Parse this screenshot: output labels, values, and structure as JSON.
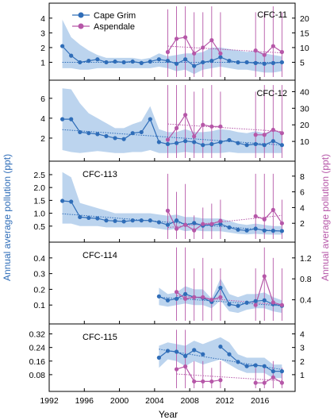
{
  "colors": {
    "cape_grim": "#2f6db8",
    "aspendale": "#b657a8",
    "band": "#bcd4ee",
    "frame": "#000000"
  },
  "labels": {
    "xlabel": "Year",
    "ylabel_left": "Annual average pollution (ppt)",
    "ylabel_right": "Annual average pollution (ppt)"
  },
  "x_axis": {
    "range": [
      1992,
      2020
    ],
    "ticks": [
      "1992",
      "1996",
      "2000",
      "2004",
      "2008",
      "2012",
      "2016"
    ]
  },
  "legend": {
    "placement": "top-left-center",
    "entries": [
      "Cape Grim",
      "Aspendale"
    ]
  },
  "chart_data": [
    {
      "type": "line",
      "title": "CFC-11",
      "title_position": "right",
      "left_axis": {
        "range": [
          0,
          4.8
        ],
        "ticks": [
          "1",
          "2",
          "3",
          "4"
        ]
      },
      "right_axis": {
        "range": [
          0,
          24
        ],
        "ticks": [
          "5",
          "10",
          "15",
          "20"
        ]
      },
      "cape_grim": {
        "x": [
          1993.5,
          1994.5,
          1995.5,
          1996.5,
          1997.5,
          1998.5,
          1999.5,
          2000.5,
          2001.5,
          2002.5,
          2003.5,
          2004.5,
          2005.5,
          2006.5,
          2007.5,
          2008.5,
          2009.5,
          2010.5,
          2011.5,
          2012.5,
          2013.5,
          2014.5,
          2015.5,
          2016.5,
          2017.5,
          2018.5
        ],
        "y": [
          2.1,
          1.45,
          1.0,
          1.1,
          1.2,
          1.0,
          1.05,
          1.0,
          1.05,
          0.95,
          1.05,
          1.2,
          1.1,
          0.9,
          1.2,
          0.75,
          1.0,
          1.1,
          1.35,
          1.1,
          1.0,
          1.0,
          0.95,
          0.9,
          0.95,
          1.0
        ],
        "band_upper": [
          3.9,
          2.7,
          2.2,
          1.8,
          1.5,
          1.3,
          1.3,
          1.3,
          1.3,
          1.2,
          1.3,
          1.6,
          1.4,
          1.5,
          1.6,
          1.6,
          1.7,
          2.0,
          2.0,
          1.9,
          1.8,
          1.7,
          1.8,
          1.6,
          1.5,
          1.4
        ],
        "band_lower": [
          0.6,
          0.6,
          0.5,
          0.5,
          0.6,
          0.6,
          0.6,
          0.6,
          0.6,
          0.6,
          0.6,
          0.7,
          0.6,
          0.4,
          0.5,
          0.2,
          0.5,
          0.6,
          0.7,
          0.6,
          0.5,
          0.5,
          0.4,
          0.3,
          0.3,
          0.4
        ],
        "trend": [
          [
            1993.5,
            1.0
          ],
          [
            2018.5,
            1.0
          ]
        ]
      },
      "aspendale": {
        "x": [
          2005.5,
          2006.5,
          2007.5,
          2008.5,
          2009.5,
          2010.5,
          2011.5,
          2015.5,
          2016.5,
          2017.5,
          2018.5
        ],
        "y": [
          8.5,
          13.0,
          13.5,
          8.0,
          10.0,
          12.5,
          8.0,
          9.0,
          7.5,
          10.5,
          8.5
        ],
        "err_low": [
          0.0,
          0.0,
          0.0,
          0.0,
          0.0,
          0.0,
          0.0,
          0.0,
          0.0,
          0.0,
          0.0
        ],
        "err_high": [
          23.0,
          24.0,
          24.0,
          22.0,
          22.0,
          24.0,
          22.0,
          22.0,
          22.0,
          24.0,
          22.0
        ],
        "trend": [
          [
            2005.5,
            10.5
          ],
          [
            2018.5,
            8.2
          ]
        ]
      }
    },
    {
      "type": "line",
      "title": "CFC-12",
      "title_position": "right",
      "left_axis": {
        "range": [
          0,
          7.5
        ],
        "ticks": [
          "2",
          "4",
          "6"
        ]
      },
      "right_axis": {
        "range": [
          0,
          45
        ],
        "ticks": [
          "10",
          "20",
          "30",
          "40"
        ]
      },
      "cape_grim": {
        "x": [
          1993.5,
          1994.5,
          1995.5,
          1996.5,
          1997.5,
          1998.5,
          1999.5,
          2000.5,
          2001.5,
          2002.5,
          2003.5,
          2004.5,
          2005.5,
          2006.5,
          2007.5,
          2008.5,
          2009.5,
          2010.5,
          2011.5,
          2012.5,
          2013.5,
          2014.5,
          2015.5,
          2016.5,
          2017.5,
          2018.5
        ],
        "y": [
          3.9,
          3.9,
          2.6,
          2.5,
          2.4,
          2.2,
          2.0,
          1.9,
          2.5,
          2.6,
          3.9,
          1.6,
          1.4,
          1.5,
          1.7,
          1.6,
          1.3,
          1.4,
          1.6,
          1.8,
          1.5,
          1.3,
          1.4,
          1.3,
          1.7,
          1.3
        ],
        "band_upper": [
          7.0,
          6.9,
          5.5,
          4.5,
          4.0,
          3.5,
          3.0,
          3.0,
          3.4,
          3.7,
          5.2,
          2.9,
          2.6,
          2.6,
          2.9,
          2.6,
          2.6,
          2.7,
          2.9,
          2.8,
          2.6,
          2.5,
          2.7,
          2.5,
          2.8,
          2.5
        ],
        "band_lower": [
          0.8,
          0.6,
          0.5,
          0.6,
          0.7,
          0.6,
          0.5,
          0.5,
          0.6,
          0.6,
          0.8,
          0.5,
          0.5,
          0.5,
          0.6,
          0.5,
          0.5,
          0.5,
          0.5,
          0.6,
          0.5,
          0.5,
          0.5,
          0.5,
          0.5,
          0.5
        ],
        "trend": [
          [
            1993.5,
            2.85
          ],
          [
            2018.5,
            1.3
          ]
        ]
      },
      "aspendale": {
        "x": [
          2005.5,
          2006.5,
          2007.5,
          2008.5,
          2009.5,
          2010.5,
          2011.5,
          2015.5,
          2016.5,
          2017.5,
          2018.5
        ],
        "y": [
          11.0,
          18.0,
          26.0,
          13.0,
          20.0,
          19.0,
          19.0,
          14.0,
          14.0,
          17.0,
          15.0
        ],
        "err_low": [
          0.0,
          0.0,
          0.0,
          0.0,
          0.0,
          0.0,
          0.0,
          0.0,
          0.0,
          0.0,
          0.0
        ],
        "err_high": [
          44.0,
          44.0,
          44.0,
          40.0,
          42.0,
          44.0,
          40.0,
          40.0,
          44.0,
          44.0,
          44.0
        ],
        "trend": [
          [
            2005.5,
            20.5
          ],
          [
            2018.5,
            16.0
          ]
        ]
      }
    },
    {
      "type": "line",
      "title": "CFC-113",
      "title_position": "left",
      "left_axis": {
        "range": [
          0,
          2.9
        ],
        "ticks": [
          "0.5",
          "1.0",
          "1.5",
          "2.0",
          "2.5"
        ]
      },
      "right_axis": {
        "range": [
          0,
          9.5
        ],
        "ticks": [
          "2",
          "4",
          "6",
          "8"
        ]
      },
      "cape_grim": {
        "x": [
          1993.5,
          1994.5,
          1995.5,
          1996.5,
          1997.5,
          1998.5,
          1999.5,
          2000.5,
          2001.5,
          2002.5,
          2003.5,
          2004.5,
          2005.5,
          2006.5,
          2007.5,
          2008.5,
          2009.5,
          2010.5,
          2011.5,
          2012.5,
          2013.5,
          2014.5,
          2015.5,
          2016.5,
          2017.5,
          2018.5
        ],
        "y": [
          1.48,
          1.45,
          0.85,
          0.82,
          0.8,
          0.72,
          0.7,
          0.68,
          0.72,
          0.72,
          0.72,
          0.65,
          0.55,
          0.72,
          0.55,
          0.62,
          0.52,
          0.55,
          0.58,
          0.45,
          0.36,
          0.33,
          0.4,
          0.33,
          0.32,
          0.31
        ],
        "band_upper": [
          2.6,
          2.4,
          1.4,
          1.3,
          1.2,
          1.1,
          1.0,
          1.0,
          1.0,
          1.0,
          1.0,
          0.95,
          0.9,
          0.95,
          0.85,
          0.85,
          0.8,
          0.8,
          0.8,
          0.7,
          0.6,
          0.55,
          0.6,
          0.55,
          0.5,
          0.5
        ],
        "band_lower": [
          0.6,
          0.6,
          0.5,
          0.5,
          0.5,
          0.45,
          0.45,
          0.45,
          0.45,
          0.45,
          0.45,
          0.4,
          0.35,
          0.4,
          0.3,
          0.35,
          0.3,
          0.3,
          0.3,
          0.25,
          0.2,
          0.18,
          0.2,
          0.18,
          0.17,
          0.17
        ],
        "trend": [
          [
            1993.5,
            0.98
          ],
          [
            2018.5,
            0.3
          ]
        ]
      },
      "aspendale": {
        "x": [
          2005.5,
          2006.5,
          2007.5,
          2008.5,
          2009.5,
          2010.5,
          2011.5,
          2015.5,
          2016.5,
          2017.5,
          2018.5
        ],
        "y": [
          3.6,
          1.3,
          1.8,
          1.1,
          1.9,
          1.9,
          2.3,
          2.9,
          2.5,
          3.7,
          2.0
        ],
        "err_low": [
          0.0,
          0.0,
          0.0,
          0.0,
          0.0,
          0.0,
          0.0,
          0.0,
          0.0,
          0.0,
          0.0
        ],
        "err_high": [
          8.3,
          6.0,
          7.0,
          3.0,
          4.0,
          4.5,
          5.0,
          8.3,
          8.3,
          8.3,
          5.0
        ],
        "trend": [
          [
            2005.5,
            1.45
          ],
          [
            2018.5,
            3.0
          ]
        ]
      }
    },
    {
      "type": "line",
      "title": "CFC-114",
      "title_position": "left",
      "left_axis": {
        "range": [
          0,
          0.48
        ],
        "ticks": [
          "0.1",
          "0.2",
          "0.3",
          "0.4"
        ]
      },
      "right_axis": {
        "range": [
          0,
          1.44
        ],
        "ticks": [
          "0.4",
          "0.8",
          "1.2"
        ]
      },
      "cape_grim": {
        "x": [
          2004.5,
          2005.5,
          2006.5,
          2007.5,
          2008.5,
          2009.5,
          2010.5,
          2011.5,
          2012.5,
          2013.5,
          2014.5,
          2015.5,
          2016.5,
          2017.5,
          2018.5
        ],
        "y": [
          0.155,
          0.13,
          0.14,
          0.17,
          0.15,
          0.145,
          0.12,
          0.21,
          0.105,
          0.095,
          0.115,
          0.125,
          0.13,
          0.105,
          0.095
        ],
        "band_upper": [
          0.21,
          0.17,
          0.18,
          0.22,
          0.2,
          0.2,
          0.14,
          0.27,
          0.17,
          0.15,
          0.17,
          0.17,
          0.18,
          0.15,
          0.13
        ],
        "band_lower": [
          0.1,
          0.09,
          0.1,
          0.11,
          0.1,
          0.1,
          0.08,
          0.13,
          0.06,
          0.05,
          0.07,
          0.08,
          0.08,
          0.06,
          0.05
        ],
        "trend": [
          [
            2004.5,
            0.15
          ],
          [
            2018.5,
            0.095
          ]
        ]
      },
      "aspendale": {
        "x": [
          2006.5,
          2007.5,
          2008.5,
          2009.5,
          2010.5,
          2011.5,
          2015.5,
          2016.5,
          2017.5,
          2018.5
        ],
        "y": [
          0.55,
          0.42,
          0.45,
          0.45,
          0.4,
          0.45,
          0.3,
          0.85,
          0.35,
          0.3
        ],
        "err_low": [
          0.0,
          0.0,
          0.0,
          0.0,
          0.0,
          0.0,
          0.0,
          0.0,
          0.0,
          0.0
        ],
        "err_high": [
          1.4,
          1.4,
          1.0,
          1.2,
          1.0,
          1.0,
          1.0,
          1.4,
          1.2,
          1.0
        ],
        "trend": [
          [
            2006.5,
            0.48
          ],
          [
            2018.5,
            0.3
          ]
        ]
      }
    },
    {
      "type": "line",
      "title": "CFC-115",
      "title_position": "left",
      "left_axis": {
        "range": [
          0,
          0.36
        ],
        "ticks": [
          "0.08",
          "0.16",
          "0.24",
          "0.32"
        ]
      },
      "right_axis": {
        "range": [
          0,
          4.5
        ],
        "ticks": [
          "1",
          "2",
          "3",
          "4"
        ]
      },
      "cape_grim": {
        "x": [
          2004.5,
          2005.5,
          2006.5,
          2007.5,
          2008.5,
          2009.5,
          2011.5,
          2012.5,
          2013.5,
          2014.5,
          2015.5,
          2016.5,
          2017.5,
          2018.5
        ],
        "y": [
          0.18,
          0.22,
          0.215,
          0.19,
          0.225,
          0.2,
          0.245,
          0.2,
          0.155,
          0.13,
          0.135,
          0.13,
          0.1,
          0.1
        ],
        "band_upper": [
          0.25,
          0.27,
          0.26,
          0.25,
          0.28,
          0.26,
          0.3,
          0.27,
          0.2,
          0.18,
          0.18,
          0.18,
          0.14,
          0.14
        ],
        "band_lower": [
          0.12,
          0.17,
          0.16,
          0.13,
          0.16,
          0.14,
          0.17,
          0.14,
          0.11,
          0.09,
          0.09,
          0.09,
          0.06,
          0.06
        ],
        "trend": [
          [
            2004.5,
            0.23
          ],
          [
            2018.5,
            0.11
          ]
        ]
      },
      "aspendale": {
        "x": [
          2006.5,
          2007.5,
          2008.5,
          2009.5,
          2010.5,
          2011.5,
          2015.5,
          2016.5,
          2017.5,
          2018.5
        ],
        "y": [
          1.4,
          1.6,
          0.5,
          0.5,
          0.5,
          0.6,
          0.4,
          0.4,
          0.8,
          0.4
        ],
        "err_low": [
          0.0,
          0.0,
          0.0,
          0.0,
          0.0,
          0.0,
          0.0,
          0.0,
          0.0,
          0.0
        ],
        "err_high": [
          4.3,
          4.3,
          2.0,
          2.0,
          1.5,
          2.0,
          1.5,
          1.5,
          2.0,
          1.5
        ],
        "trend": [
          [
            2006.5,
            1.05
          ],
          [
            2018.5,
            0.55
          ]
        ]
      }
    }
  ]
}
